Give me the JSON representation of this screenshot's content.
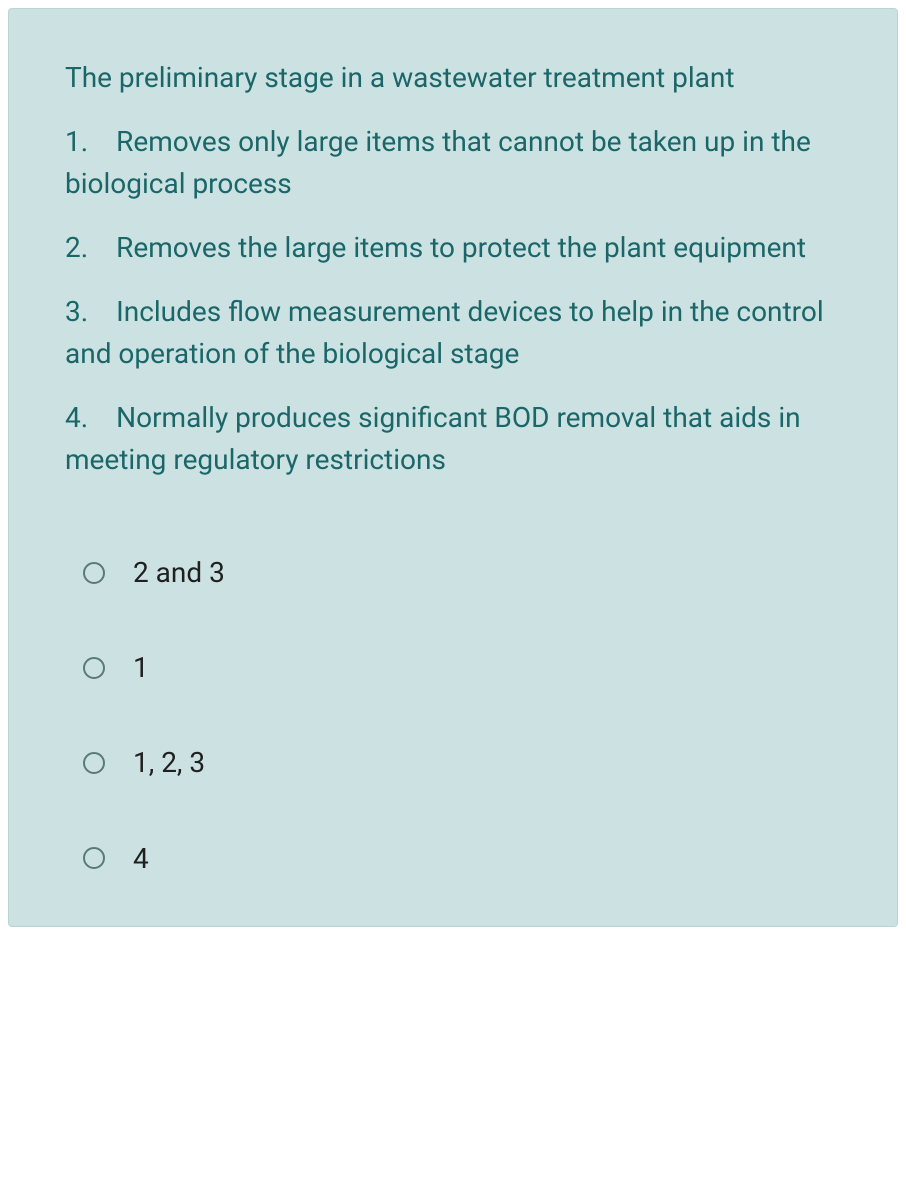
{
  "question": {
    "prompt": "The preliminary stage in a wastewater treatment plant",
    "statements": [
      {
        "num": "1.",
        "text": "Removes only large items that cannot be taken up in the biological process"
      },
      {
        "num": "2.",
        "text": "Removes the large items to protect the plant equipment"
      },
      {
        "num": "3.",
        "text": "Includes flow measurement devices to help in the control and operation of the biological stage"
      },
      {
        "num": "4.",
        "text": "Normally produces significant BOD removal that aids in meeting regulatory restrictions"
      }
    ],
    "options": [
      {
        "label": "2 and 3"
      },
      {
        "label": "1"
      },
      {
        "label": "1, 2, 3"
      },
      {
        "label": "4"
      }
    ]
  },
  "colors": {
    "card_bg": "#cce2e2",
    "card_border": "#b8d4d4",
    "text_teal": "#1a6668",
    "text_dark": "#202020",
    "radio_border": "#5a7a7a",
    "page_bg": "#ffffff"
  },
  "typography": {
    "question_fontsize": 28,
    "option_fontsize": 28
  }
}
